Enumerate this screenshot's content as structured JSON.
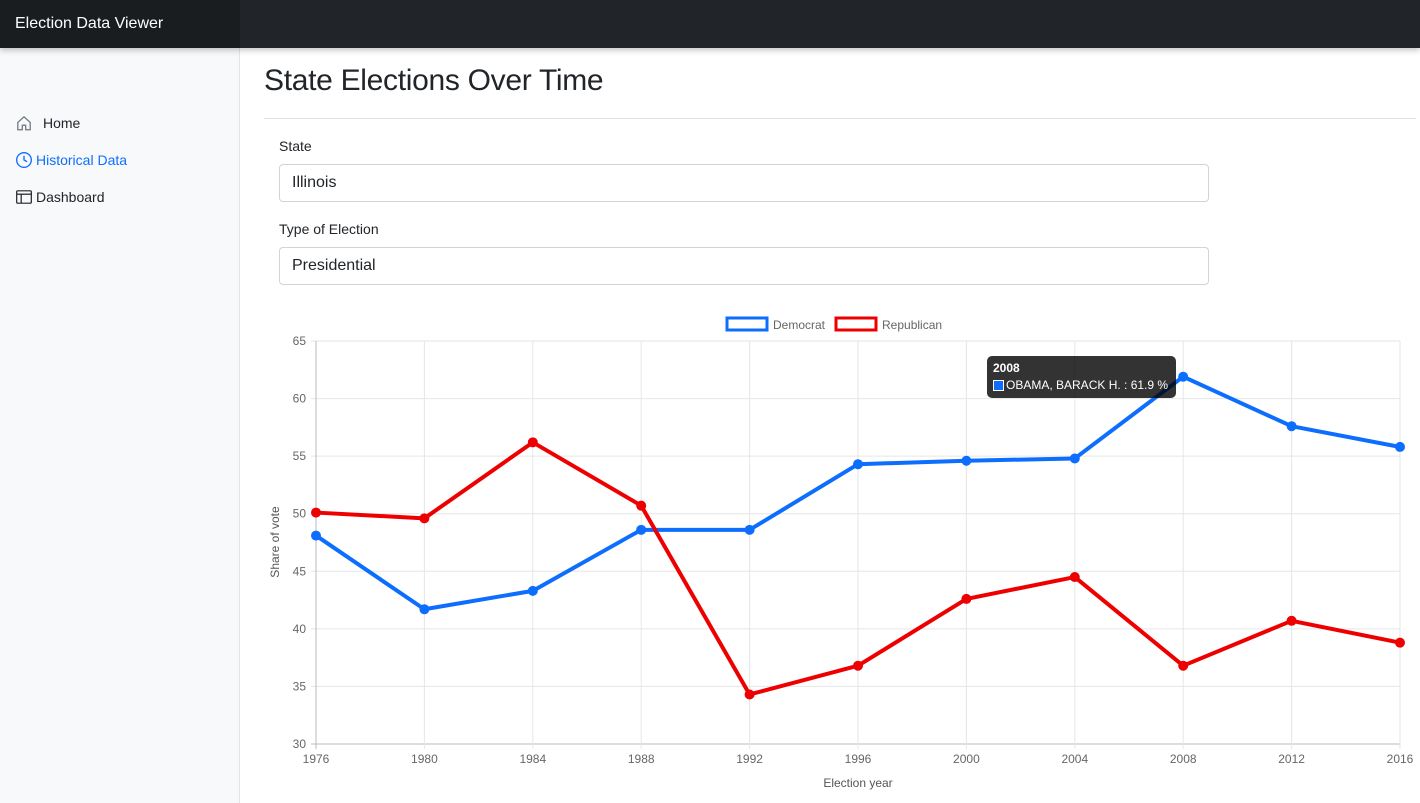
{
  "app": {
    "title": "Election Data Viewer"
  },
  "sidebar": {
    "items": [
      {
        "label": "Home",
        "icon": "home-icon",
        "active": false
      },
      {
        "label": "Historical Data",
        "icon": "clock-icon",
        "active": true
      },
      {
        "label": "Dashboard",
        "icon": "table-icon",
        "active": false
      }
    ]
  },
  "page": {
    "title": "State Elections Over Time"
  },
  "form": {
    "state_label": "State",
    "state_value": "Illinois",
    "type_label": "Type of Election",
    "type_value": "Presidential"
  },
  "tooltip": {
    "title": "2008",
    "text": "OBAMA, BARACK H. : 61.9 %"
  },
  "colors": {
    "democrat": "#0d6efd",
    "republican": "#ee0000",
    "accent": "#0d6efd"
  },
  "chart_data": {
    "type": "line",
    "xlabel": "Election year",
    "ylabel": "Share of vote",
    "ylim": [
      30,
      65
    ],
    "yticks": [
      30,
      35,
      40,
      45,
      50,
      55,
      60,
      65
    ],
    "grid": true,
    "legend_position": "top",
    "categories": [
      "1976",
      "1980",
      "1984",
      "1988",
      "1992",
      "1996",
      "2000",
      "2004",
      "2008",
      "2012",
      "2016"
    ],
    "series": [
      {
        "name": "Democrat",
        "color": "#0d6efd",
        "values": [
          48.1,
          41.7,
          43.3,
          48.6,
          48.6,
          54.3,
          54.6,
          54.8,
          61.9,
          57.6,
          55.8
        ]
      },
      {
        "name": "Republican",
        "color": "#ee0000",
        "values": [
          50.1,
          49.6,
          56.2,
          50.7,
          34.3,
          36.8,
          42.6,
          44.5,
          36.8,
          40.7,
          38.8
        ]
      }
    ]
  }
}
